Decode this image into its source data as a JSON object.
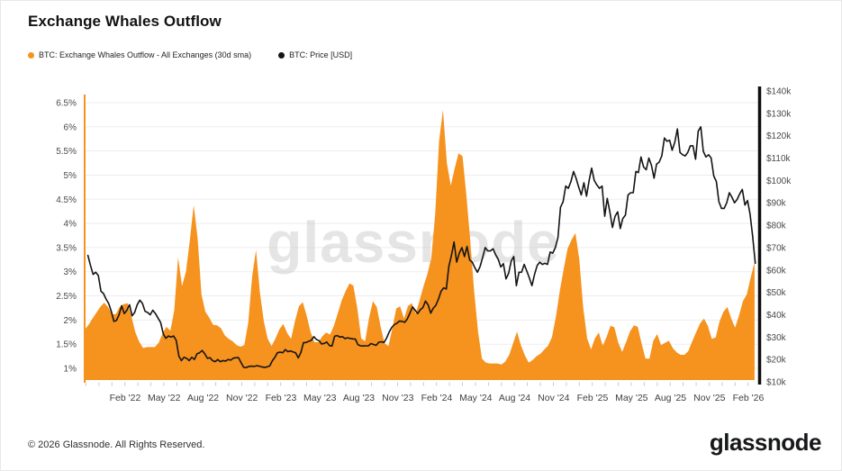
{
  "header": {
    "title": "Exchange Whales Outflow"
  },
  "legend": [
    {
      "label": "BTC: Exchange Whales Outflow - All Exchanges (30d sma)",
      "color": "#F6921E"
    },
    {
      "label": "BTC: Price [USD]",
      "color": "#141414"
    }
  ],
  "watermark": "glassnode",
  "footer": {
    "copyright": "© 2026 Glassnode. All Rights Reserved.",
    "brand": "glassnode"
  },
  "colors": {
    "outflow_area": "#F6921E",
    "price_line": "#141414",
    "grid": "#ededed",
    "axis_text": "#4a4a4a",
    "minor_tick": "#c9c9c9",
    "watermark": "#c6c6c6"
  },
  "chart_data": {
    "type": "combo",
    "title": "Exchange Whales Outflow",
    "grid": "horizontal",
    "legend_position": "top-left",
    "x_axis": {
      "domain_decimal_years": [
        2021.825,
        2026.16
      ],
      "minor_tick_interval_months": 1,
      "first_minor_tick_decimal_year": 2021.8333,
      "ticks": [
        {
          "t": 2022.085,
          "label": "Feb '22"
        },
        {
          "t": 2022.335,
          "label": "May '22"
        },
        {
          "t": 2022.585,
          "label": "Aug '22"
        },
        {
          "t": 2022.835,
          "label": "Nov '22"
        },
        {
          "t": 2023.085,
          "label": "Feb '23"
        },
        {
          "t": 2023.335,
          "label": "May '23"
        },
        {
          "t": 2023.585,
          "label": "Aug '23"
        },
        {
          "t": 2023.835,
          "label": "Nov '23"
        },
        {
          "t": 2024.085,
          "label": "Feb '24"
        },
        {
          "t": 2024.335,
          "label": "May '24"
        },
        {
          "t": 2024.585,
          "label": "Aug '24"
        },
        {
          "t": 2024.835,
          "label": "Nov '24"
        },
        {
          "t": 2025.085,
          "label": "Feb '25"
        },
        {
          "t": 2025.335,
          "label": "May '25"
        },
        {
          "t": 2025.585,
          "label": "Aug '25"
        },
        {
          "t": 2025.835,
          "label": "Nov '25"
        },
        {
          "t": 2026.085,
          "label": "Feb '26"
        }
      ]
    },
    "left_axis": {
      "unit": "%",
      "range": [
        1,
        6.5
      ],
      "ticks": [
        {
          "value": 6.5,
          "label": "6.5%"
        },
        {
          "value": 6,
          "label": "6%"
        },
        {
          "value": 5.5,
          "label": "5.5%"
        },
        {
          "value": 5,
          "label": "5%"
        },
        {
          "value": 4.5,
          "label": "4.5%"
        },
        {
          "value": 4,
          "label": "4%"
        },
        {
          "value": 3.5,
          "label": "3.5%"
        },
        {
          "value": 3,
          "label": "3%"
        },
        {
          "value": 2.5,
          "label": "2.5%"
        },
        {
          "value": 2,
          "label": "2%"
        },
        {
          "value": 1.5,
          "label": "1.5%"
        },
        {
          "value": 1,
          "label": "1%"
        }
      ]
    },
    "right_axis": {
      "unit": "USD thousands",
      "range_thousands": [
        10,
        140
      ],
      "ticks": [
        {
          "value": 140,
          "label": "$140k"
        },
        {
          "value": 130,
          "label": "$130k"
        },
        {
          "value": 120,
          "label": "$120k"
        },
        {
          "value": 110,
          "label": "$110k"
        },
        {
          "value": 100,
          "label": "$100k"
        },
        {
          "value": 90,
          "label": "$90k"
        },
        {
          "value": 80,
          "label": "$80k"
        },
        {
          "value": 70,
          "label": "$70k"
        },
        {
          "value": 60,
          "label": "$60k"
        },
        {
          "value": 50,
          "label": "$50k"
        },
        {
          "value": 40,
          "label": "$40k"
        },
        {
          "value": 30,
          "label": "$30k"
        },
        {
          "value": 20,
          "label": "$20k"
        },
        {
          "value": 10,
          "label": "$10k"
        }
      ]
    },
    "series": [
      {
        "name": "BTC: Exchange Whales Outflow - All Exchanges (30d sma)",
        "type": "area",
        "y_axis": "left",
        "unit": "percent",
        "color": "#F6921E",
        "t_start": 2021.825,
        "t_step": 0.025,
        "values": [
          1.8,
          1.9,
          2.03,
          2.15,
          2.27,
          2.36,
          2.27,
          2.12,
          2.12,
          2.27,
          2.33,
          2.35,
          2.08,
          1.75,
          1.55,
          1.42,
          1.44,
          1.44,
          1.44,
          1.53,
          1.72,
          1.86,
          1.78,
          2.2,
          3.3,
          2.7,
          3.0,
          3.65,
          4.38,
          3.7,
          2.52,
          2.17,
          2.05,
          1.9,
          1.89,
          1.83,
          1.68,
          1.61,
          1.56,
          1.48,
          1.45,
          1.48,
          1.95,
          2.9,
          3.45,
          2.57,
          1.97,
          1.61,
          1.46,
          1.62,
          1.81,
          1.92,
          1.73,
          1.61,
          1.98,
          2.28,
          2.37,
          2.09,
          1.75,
          1.54,
          1.54,
          1.66,
          1.74,
          1.7,
          1.88,
          2.14,
          2.41,
          2.6,
          2.76,
          2.71,
          2.24,
          1.62,
          1.56,
          2.03,
          2.39,
          2.27,
          1.86,
          1.52,
          1.46,
          1.83,
          2.24,
          2.28,
          2.03,
          2.29,
          2.35,
          2.13,
          2.41,
          2.7,
          2.95,
          3.28,
          4.2,
          5.71,
          6.35,
          5.25,
          4.78,
          5.14,
          5.45,
          5.39,
          4.58,
          3.64,
          2.6,
          1.75,
          1.2,
          1.12,
          1.1,
          1.1,
          1.1,
          1.08,
          1.14,
          1.28,
          1.52,
          1.76,
          1.48,
          1.27,
          1.12,
          1.17,
          1.25,
          1.3,
          1.39,
          1.47,
          1.65,
          2.08,
          2.61,
          3.06,
          3.48,
          3.66,
          3.8,
          3.25,
          2.26,
          1.62,
          1.39,
          1.62,
          1.74,
          1.47,
          1.65,
          1.88,
          1.85,
          1.53,
          1.34,
          1.54,
          1.76,
          1.89,
          1.86,
          1.51,
          1.2,
          1.2,
          1.57,
          1.71,
          1.48,
          1.53,
          1.57,
          1.42,
          1.33,
          1.28,
          1.28,
          1.36,
          1.56,
          1.75,
          1.93,
          2.03,
          1.88,
          1.61,
          1.64,
          1.97,
          2.17,
          2.27,
          2.03,
          1.84,
          2.09,
          2.39,
          2.53,
          2.88,
          3.2
        ]
      },
      {
        "name": "BTC: Price [USD]",
        "type": "line",
        "y_axis": "right",
        "unit": "USD_thousands",
        "color": "#141414",
        "t_start": 2021.846,
        "t_step": 0.016667,
        "values": [
          66.5,
          62,
          58,
          59,
          57.5,
          50.5,
          49.5,
          47,
          45,
          41.5,
          37,
          37.5,
          40,
          44,
          40.5,
          42,
          44.5,
          39.5,
          41,
          44.5,
          46.5,
          45,
          41.5,
          41,
          40,
          42,
          40.5,
          38.5,
          36.5,
          31.5,
          29.5,
          30.5,
          30,
          30.5,
          28.5,
          21.5,
          19.5,
          21,
          20.5,
          19.5,
          21,
          20,
          22.5,
          23,
          24,
          22.5,
          20.5,
          20.8,
          19.5,
          19,
          20,
          19,
          19.5,
          19.3,
          20,
          19.7,
          20.6,
          20.8,
          20.8,
          18.5,
          16.5,
          16.4,
          16.9,
          17,
          16.9,
          17.2,
          17,
          16.7,
          16.5,
          16.7,
          17.1,
          19.4,
          20.9,
          23,
          23.3,
          23,
          24.4,
          23.5,
          23.8,
          23.4,
          23,
          20.7,
          23.1,
          27.5,
          27.6,
          28.1,
          28.5,
          30.2,
          28.9,
          28.4,
          26.9,
          27.2,
          27.8,
          26.2,
          26,
          30.4,
          30.7,
          30,
          30.2,
          29.3,
          29.7,
          29.4,
          29.2,
          29.1,
          26.6,
          26.1,
          26,
          26.1,
          26.1,
          27.1,
          26.7,
          26.3,
          27.7,
          27.9,
          27.6,
          29.5,
          32.2,
          34.3,
          35.6,
          36.2,
          37.2,
          37,
          36.6,
          38.1,
          40.7,
          43.5,
          42,
          40.5,
          42.2,
          43.2,
          46.1,
          44.4,
          40.7,
          42.9,
          44.2,
          47,
          50.5,
          52,
          51.5,
          61.5,
          66.5,
          72.5,
          63.5,
          67.5,
          70,
          66,
          70.5,
          64.5,
          63.5,
          61,
          59,
          61.5,
          65.5,
          70,
          68.5,
          68.5,
          69.5,
          66.8,
          64.8,
          61.3,
          62.8,
          56,
          58.5,
          64,
          66,
          53,
          59,
          59,
          62.5,
          59.5,
          56.5,
          53,
          58,
          62,
          63.5,
          62.5,
          63,
          62.5,
          68,
          67.5,
          70,
          74.5,
          88,
          90.5,
          97.5,
          96.5,
          99.5,
          104,
          101,
          97,
          93.5,
          99,
          93,
          100,
          105.5,
          100,
          98,
          96.5,
          97.5,
          84,
          92,
          86,
          79,
          84,
          86,
          78.5,
          83,
          84.5,
          93.5,
          94.5,
          94.5,
          104,
          103.5,
          110.5,
          106,
          104.8,
          110,
          106.8,
          101,
          107.3,
          108.2,
          111,
          119,
          117.5,
          118,
          113.5,
          117,
          123,
          112.5,
          111.5,
          111,
          112.5,
          115.5,
          115.5,
          109.5,
          122,
          124,
          113,
          110.5,
          111.5,
          110,
          102,
          99.5,
          90.5,
          87.5,
          87.5,
          90,
          94.5,
          92.5,
          90,
          91.5,
          94,
          96,
          89,
          91,
          85,
          75,
          63
        ]
      }
    ]
  }
}
